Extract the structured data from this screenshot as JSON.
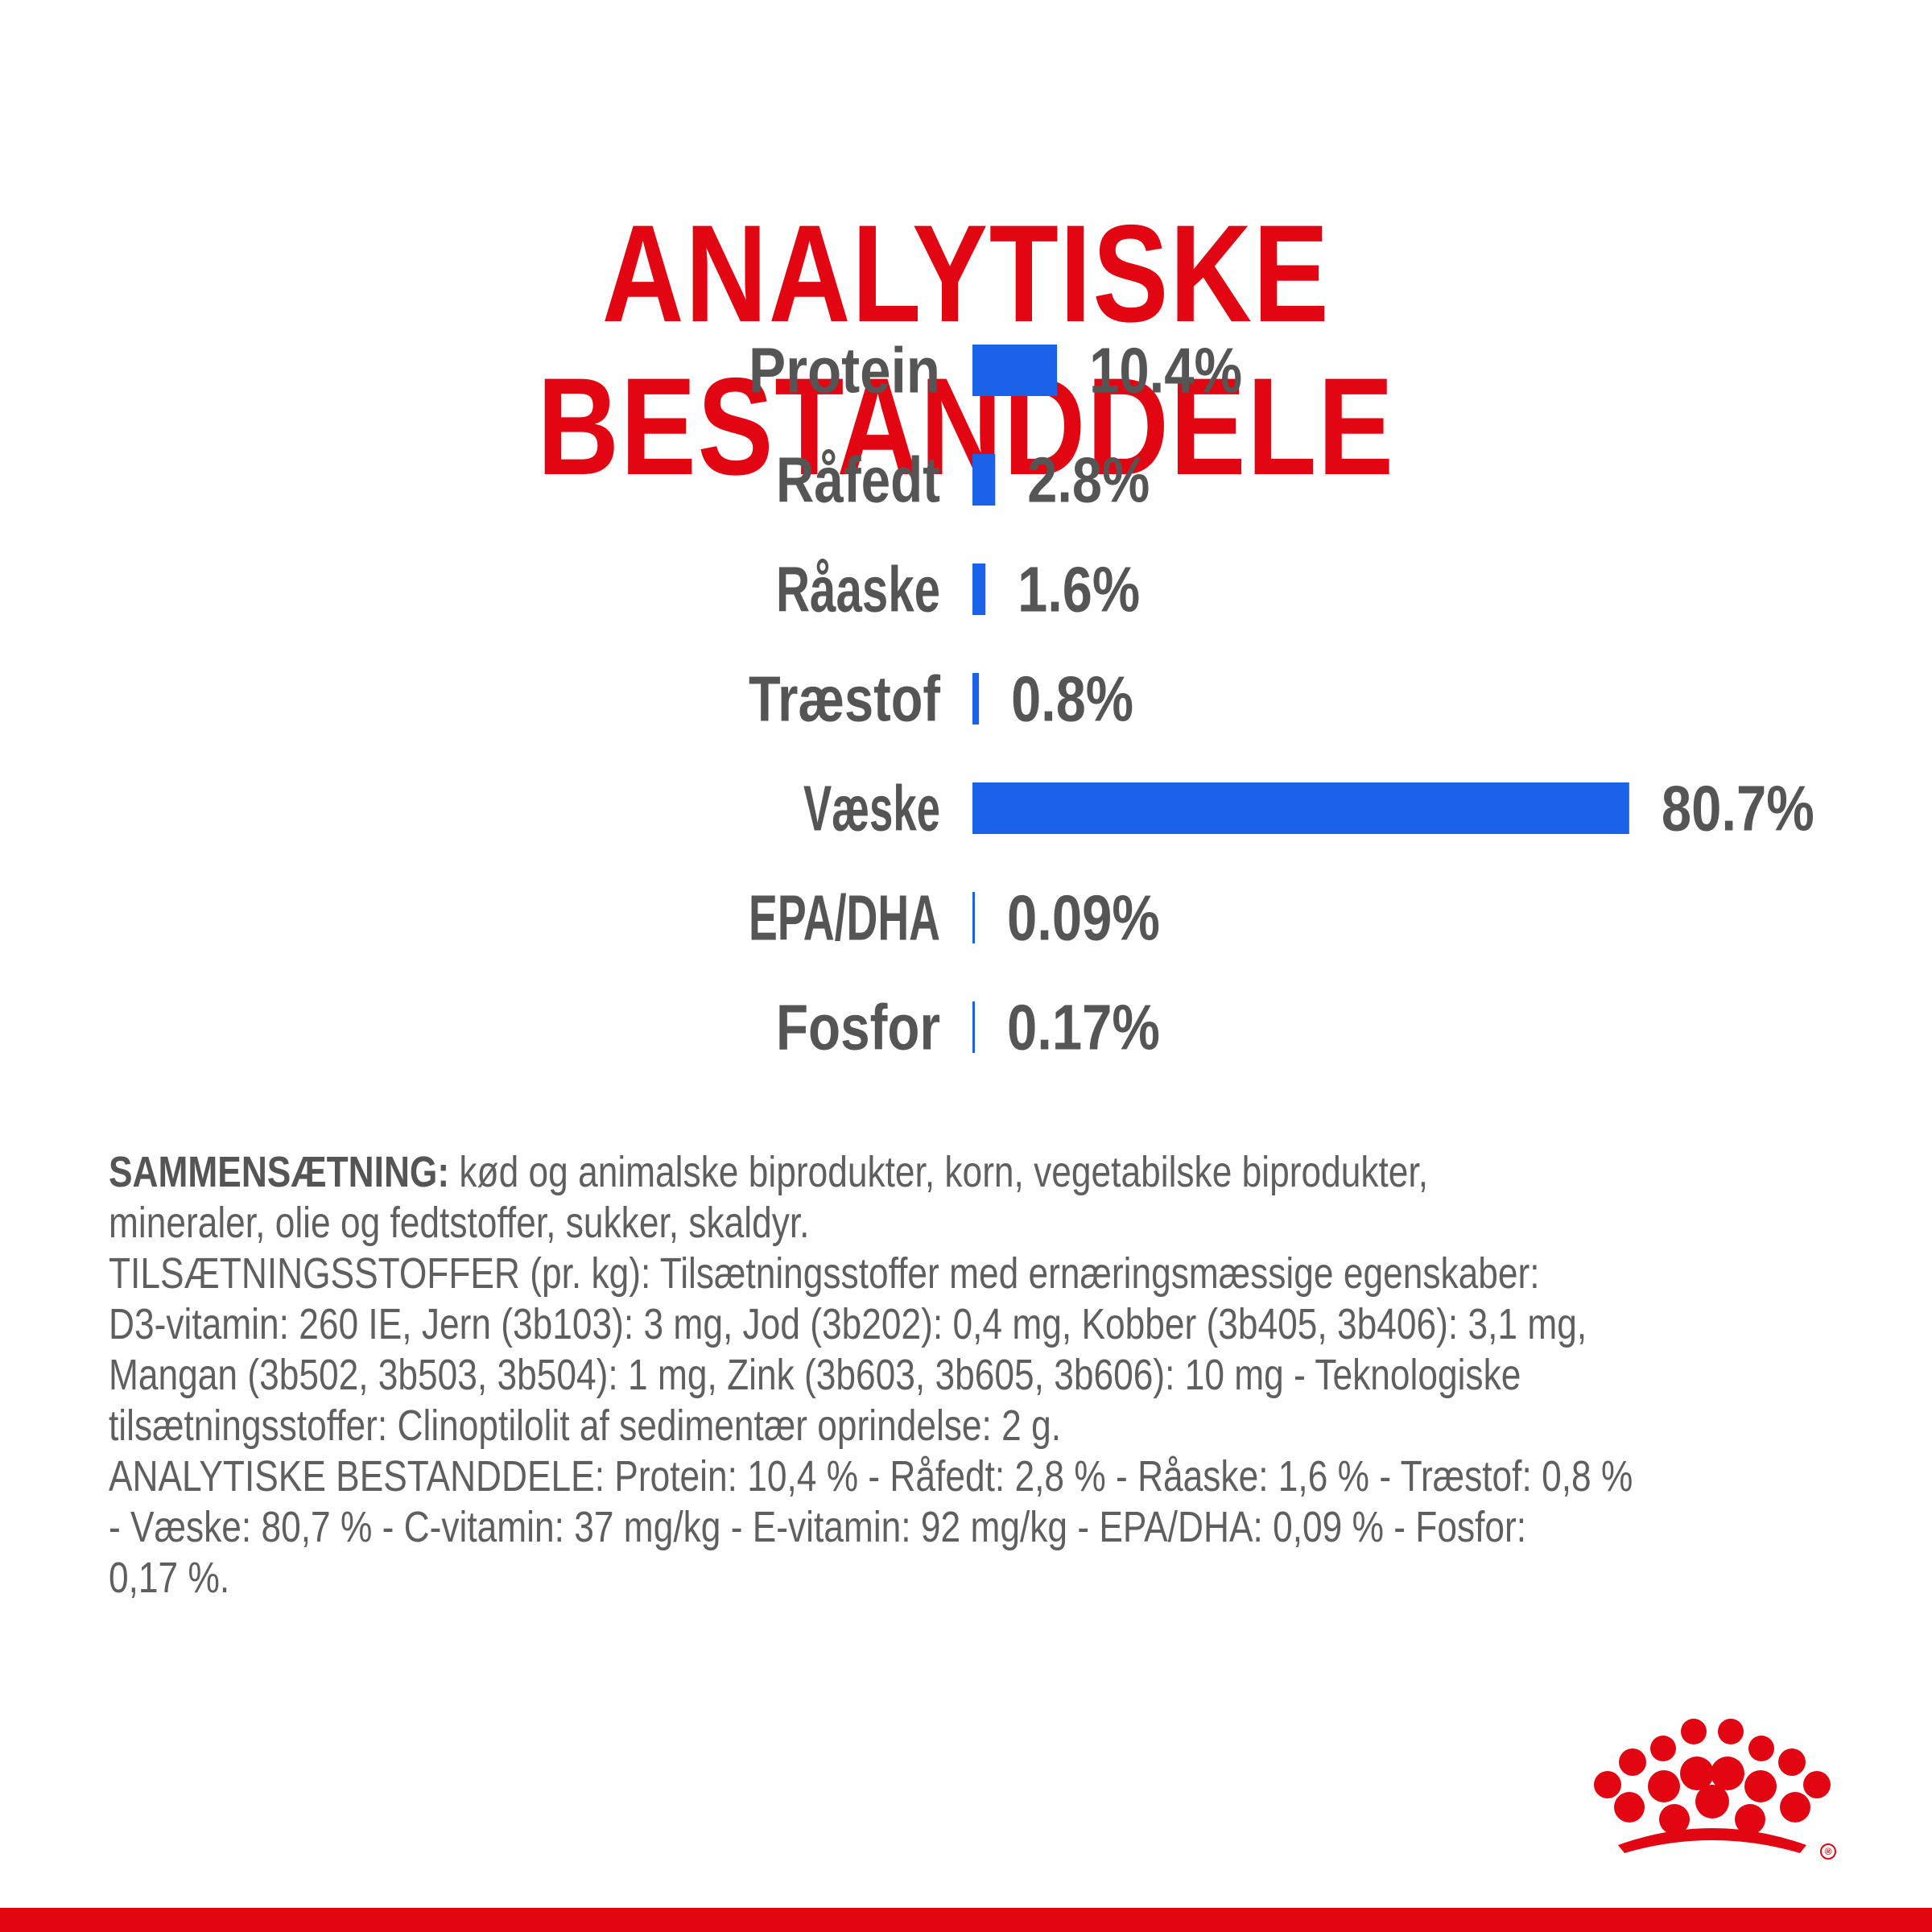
{
  "title": "ANALYTISKE BESTANDDELE",
  "colors": {
    "title": "#e20613",
    "bar": "#1a63e8",
    "label": "#555555",
    "body_text": "#5f5f5f",
    "brand_red": "#e20613"
  },
  "chart_data": {
    "type": "bar",
    "orientation": "horizontal",
    "categories": [
      "Protein",
      "Råfedt",
      "Råaske",
      "Træstof",
      "Væske",
      "EPA/DHA",
      "Fosfor"
    ],
    "values": [
      10.4,
      2.8,
      1.6,
      0.8,
      80.7,
      0.09,
      0.17
    ],
    "value_labels": [
      "10.4%",
      "2.8%",
      "1.6%",
      "0.8%",
      "80.7%",
      "0.09%",
      "0.17%"
    ],
    "unit": "%",
    "grid": false,
    "legend": "none"
  },
  "composition": {
    "lead_label": "SAMMENSÆTNING:",
    "lines": [
      " kød og animalske biprodukter, korn, vegetabilske biprodukter,",
      "mineraler, olie og fedtstoffer, sukker, skaldyr.",
      "TILSÆTNINGSSTOFFER (pr. kg): Tilsætningsstoffer med ernæringsmæssige egenskaber:",
      "D3-vitamin: 260 IE, Jern (3b103): 3 mg, Jod (3b202): 0,4 mg, Kobber (3b405, 3b406): 3,1 mg,",
      "Mangan (3b502, 3b503, 3b504): 1 mg, Zink (3b603, 3b605, 3b606): 10 mg - Teknologiske",
      "tilsætningsstoffer: Clinoptilolit af sedimentær oprindelse: 2 g.",
      "ANALYTISKE BESTANDDELE: Protein: 10,4 % - Råfedt: 2,8 % - Råaske: 1,6 % - Træstof: 0,8 %",
      "- Væske: 80,7 % - C-vitamin: 37 mg/kg - E-vitamin: 92 mg/kg - EPA/DHA: 0,09 % - Fosfor:",
      "0,17 %."
    ]
  },
  "brand": {
    "logo_icon": "royal-canin-crown-icon",
    "registered_mark": "®"
  }
}
